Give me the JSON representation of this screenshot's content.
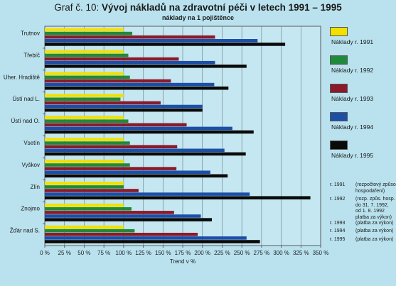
{
  "title_prefix": "Graf č. 10: ",
  "title_main": "Vývoj nákladů na zdravotní péči v letech 1991 – 1995",
  "subtitle": "náklady na 1 pojištěnce",
  "chart_data": {
    "type": "bar",
    "orientation": "horizontal",
    "categories": [
      "Trutnov",
      "Třebíč",
      "Uher. Hradiště",
      "Ústí nad L.",
      "Ústí nad O.",
      "Vsetín",
      "Vyškov",
      "Zlín",
      "Znojmo",
      "Žďár nad S."
    ],
    "series": [
      {
        "name": "Náklady r. 1991",
        "color": "#f2e100",
        "values": [
          100,
          100,
          100,
          100,
          100,
          100,
          100,
          100,
          100,
          100
        ]
      },
      {
        "name": "Náklady r. 1992",
        "color": "#1f8a3c",
        "values": [
          111,
          106,
          108,
          96,
          106,
          108,
          108,
          100,
          110,
          114
        ]
      },
      {
        "name": "Náklady r. 1993",
        "color": "#8b1a2b",
        "values": [
          216,
          170,
          160,
          147,
          180,
          168,
          167,
          119,
          164,
          194
        ]
      },
      {
        "name": "Náklady r. 1994",
        "color": "#1d4fa6",
        "values": [
          270,
          216,
          215,
          200,
          238,
          228,
          210,
          260,
          198,
          256
        ]
      },
      {
        "name": "Náklady r. 1995",
        "color": "#0a0a0a",
        "values": [
          305,
          256,
          233,
          200,
          265,
          255,
          232,
          337,
          212,
          273
        ]
      }
    ],
    "xlabel": "Trend v %",
    "xlim": [
      0,
      350
    ],
    "xticks": [
      "0 %",
      "25 %",
      "50 %",
      "75 %",
      "100 %",
      "125 %",
      "150 %",
      "175 %",
      "200 %",
      "225 %",
      "250 %",
      "275 %",
      "300 %",
      "325 %",
      "350 %"
    ],
    "grid": true,
    "legend_position": "right"
  },
  "notes": [
    {
      "year": "r. 1991",
      "text": [
        "(rozpočtový způsob",
        "hospodaření)"
      ]
    },
    {
      "year": "r. 1992",
      "text": [
        "(rozp. způs. hosp.",
        "do 31. 7. 1992,",
        "od 1. 8. 1992",
        "platba za výkon)"
      ]
    },
    {
      "year": "r. 1993",
      "text": [
        "(platba za výkon)"
      ]
    },
    {
      "year": "r. 1994",
      "text": [
        "(platba za výkon)"
      ]
    },
    {
      "year": "r. 1995",
      "text": [
        "(platba za výkon)"
      ]
    }
  ]
}
